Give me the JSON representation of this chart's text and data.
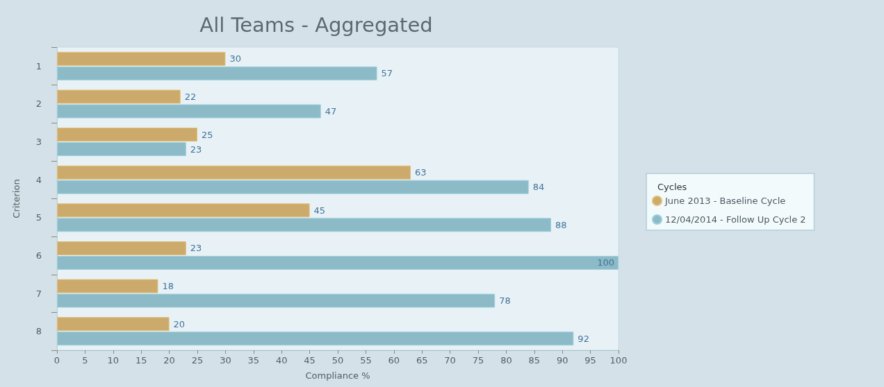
{
  "chart_data": {
    "type": "bar",
    "orientation": "horizontal",
    "title": "All Teams - Aggregated",
    "xlabel": "Compliance %",
    "ylabel": "Criterion",
    "legend_title": "Cycles",
    "categories": [
      "1",
      "2",
      "3",
      "4",
      "5",
      "6",
      "7",
      "8"
    ],
    "series": [
      {
        "name": "June 2013 - Baseline Cycle",
        "color": "#cbaa6c",
        "values": [
          30,
          22,
          25,
          63,
          45,
          23,
          18,
          20
        ]
      },
      {
        "name": "12/04/2014 - Follow Up Cycle 2",
        "color": "#8dbac7",
        "values": [
          57,
          47,
          23,
          84,
          88,
          100,
          78,
          92
        ]
      }
    ],
    "xlim": [
      0,
      100
    ],
    "xticks": [
      0,
      5,
      10,
      15,
      20,
      25,
      30,
      35,
      40,
      45,
      50,
      55,
      60,
      65,
      70,
      75,
      80,
      85,
      90,
      95,
      100
    ],
    "data_labels": true,
    "legend": "right",
    "grid": false
  }
}
